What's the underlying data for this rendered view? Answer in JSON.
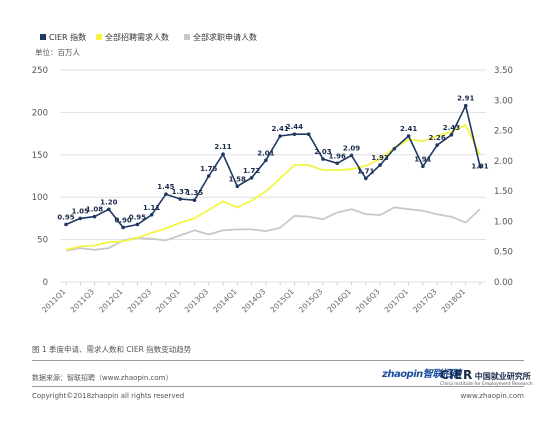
{
  "chart_data": {
    "type": "line",
    "legend": [
      {
        "name": "CIER 指数",
        "color": "#1f3864"
      },
      {
        "name": "全部招聘需求人数",
        "color": "#f5f543"
      },
      {
        "name": "全部求职申请人数",
        "color": "#c8c8c8"
      }
    ],
    "unit_label": "单位：百万人",
    "y_left_ticks": [
      "250",
      "200",
      "150",
      "100",
      "50",
      "0"
    ],
    "y_right_ticks": [
      "3.50",
      "3.00",
      "2.50",
      "2.00",
      "1.50",
      "1.00",
      "0.50",
      "0.00"
    ],
    "ylim_left": [
      0,
      250
    ],
    "ylim_right": [
      0,
      3.5
    ],
    "x_tick_labels": [
      "2011Q1",
      "2011Q3",
      "2012Q1",
      "2012Q3",
      "2013Q1",
      "2013Q3",
      "2014Q1",
      "2014Q3",
      "2015Q1",
      "2015Q3",
      "2016Q1",
      "2016Q3",
      "2017Q1",
      "2017Q3",
      "2018Q1"
    ],
    "series": [
      {
        "name": "CIER 指数",
        "axis": "right",
        "color": "#1f3864",
        "values": [
          0.95,
          1.05,
          1.08,
          1.2,
          0.9,
          0.95,
          1.11,
          1.45,
          1.37,
          1.35,
          1.75,
          2.11,
          1.58,
          1.72,
          2.01,
          2.41,
          2.44,
          2.44,
          2.03,
          1.96,
          2.09,
          1.71,
          1.93,
          2.2,
          2.41,
          1.91,
          2.26,
          2.43,
          2.91,
          1.91
        ],
        "labels": [
          "0.95",
          "1.05",
          "1.08",
          "1.20",
          "0.90",
          "0.95",
          "1.11",
          "1.45",
          "1.37",
          "1.35",
          "1.75",
          "2.11",
          "1.58",
          "1.72",
          "2.01",
          "2.41",
          "2.44",
          "",
          "2.03",
          "1.96",
          "2.09",
          "1.71",
          "1.93",
          "",
          "2.41",
          "1.91",
          "2.26",
          "2.43",
          "2.91",
          "1.91"
        ]
      },
      {
        "name": "全部招聘需求人数",
        "axis": "left",
        "color": "#f5f543",
        "values": [
          38,
          42,
          43,
          47,
          48,
          52,
          58,
          63,
          70,
          75,
          85,
          95,
          88,
          96,
          107,
          122,
          138,
          138,
          132,
          132,
          133,
          137,
          145,
          158,
          168,
          166,
          172,
          177,
          185,
          150
        ]
      },
      {
        "name": "全部求职申请人数",
        "axis": "left",
        "color": "#c8c8c8",
        "values": [
          37,
          40,
          38,
          40,
          49,
          52,
          51,
          49,
          55,
          61,
          56,
          61,
          62,
          62,
          60,
          64,
          78,
          77,
          74,
          82,
          86,
          80,
          79,
          88,
          86,
          84,
          80,
          77,
          70,
          86
        ]
      }
    ]
  },
  "caption": "图 1 季度申请、需求人数和 CIER 指数变动趋势",
  "footer": {
    "source": "数据来源：智联招聘（www.zhaopin.com）",
    "copyright": "Copyright©2018zhaopin all rights reserved",
    "website": "www.zhaopin.com",
    "logo_zhilian": "zhaopin智联招聘",
    "logo_cier": "CIER",
    "logo_cier_cn": "中国就业研究所",
    "logo_cier_en": "China Institute for Employment Research"
  }
}
